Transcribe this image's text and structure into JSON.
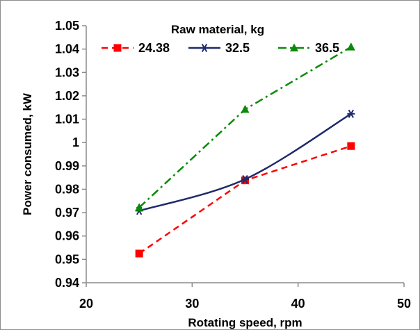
{
  "chart_data": {
    "type": "line",
    "xlabel": "Rotating speed, rpm",
    "ylabel": "Power consumed, kW",
    "xlim": [
      20,
      50
    ],
    "ylim": [
      0.94,
      1.05
    ],
    "xticks": [
      20,
      30,
      40,
      50
    ],
    "yticks": [
      0.94,
      0.95,
      0.96,
      0.97,
      0.98,
      0.99,
      1,
      1.01,
      1.02,
      1.03,
      1.04,
      1.05
    ],
    "ytick_labels": [
      "0.94",
      "0.95",
      "0.96",
      "0.97",
      "0.98",
      "0.99",
      "1",
      "1.01",
      "1.02",
      "1.03",
      "1.04",
      "1.05"
    ],
    "grid": false,
    "legend": {
      "title": "Raw material, kg",
      "placement": "top"
    },
    "x": [
      25,
      35,
      45
    ],
    "series": [
      {
        "name": "24.38",
        "values": [
          0.9525,
          0.9838,
          0.9985
        ],
        "color": "#ff0000",
        "marker": "square",
        "line_style": "dashed",
        "smooth": false
      },
      {
        "name": "32.5",
        "values": [
          0.9708,
          0.9843,
          1.0123
        ],
        "color": "#1f2a6b",
        "marker": "asterisk",
        "line_style": "solid",
        "smooth": true
      },
      {
        "name": "36.5",
        "values": [
          0.9722,
          1.0142,
          1.0409
        ],
        "color": "#0a8a0a",
        "marker": "triangle",
        "line_style": "dash-dot",
        "smooth": false
      }
    ]
  }
}
